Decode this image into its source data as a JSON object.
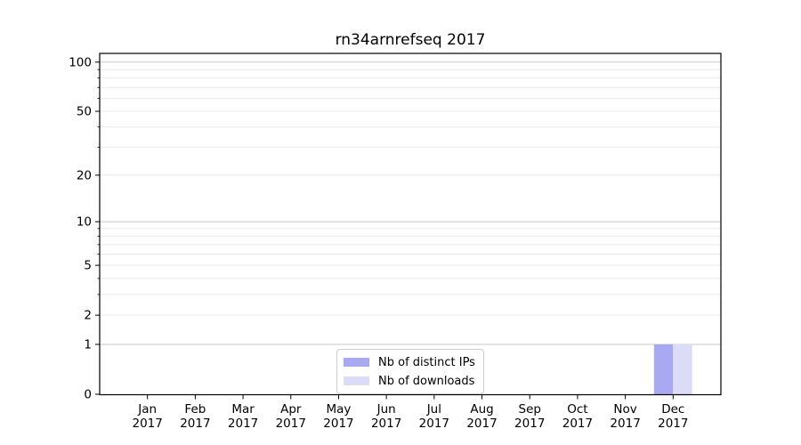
{
  "chart_data": {
    "type": "bar",
    "title": "rn34arnrefseq 2017",
    "yscale": "log1p",
    "ylim": [
      0,
      113
    ],
    "grid": true,
    "yticks_labeled": [
      0,
      1,
      2,
      5,
      10,
      20,
      50,
      100
    ],
    "yticks_decade_major": [
      1,
      10,
      100
    ],
    "yticks_minor": [
      2,
      3,
      4,
      5,
      6,
      7,
      8,
      9,
      20,
      30,
      40,
      50,
      60,
      70,
      80,
      90
    ],
    "categories": [
      {
        "month": "Jan",
        "year": "2017"
      },
      {
        "month": "Feb",
        "year": "2017"
      },
      {
        "month": "Mar",
        "year": "2017"
      },
      {
        "month": "Apr",
        "year": "2017"
      },
      {
        "month": "May",
        "year": "2017"
      },
      {
        "month": "Jun",
        "year": "2017"
      },
      {
        "month": "Jul",
        "year": "2017"
      },
      {
        "month": "Aug",
        "year": "2017"
      },
      {
        "month": "Sep",
        "year": "2017"
      },
      {
        "month": "Oct",
        "year": "2017"
      },
      {
        "month": "Nov",
        "year": "2017"
      },
      {
        "month": "Dec",
        "year": "2017"
      }
    ],
    "series": [
      {
        "name": "Nb of distinct IPs",
        "color": "#a9a9f1",
        "values": [
          0,
          0,
          0,
          0,
          0,
          0,
          0,
          0,
          0,
          0,
          0,
          1
        ]
      },
      {
        "name": "Nb of downloads",
        "color": "#dcdcf8",
        "values": [
          0,
          0,
          0,
          0,
          0,
          0,
          0,
          0,
          0,
          0,
          0,
          1
        ]
      }
    ],
    "legend_position": "lower center"
  }
}
